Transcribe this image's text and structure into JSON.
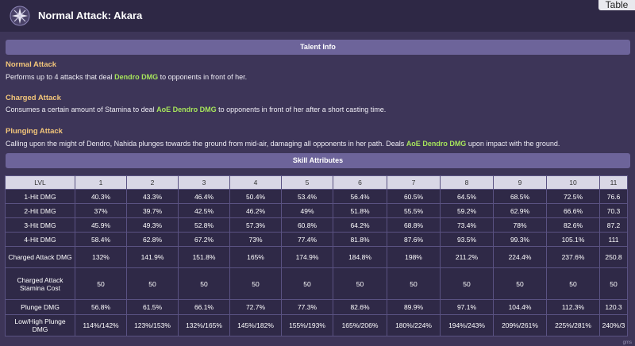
{
  "header": {
    "title": "Normal Attack: Akara",
    "table_button": "Table"
  },
  "talent_info": {
    "heading": "Talent Info",
    "normal": {
      "name": "Normal Attack",
      "before": "Performs up to 4 attacks that deal ",
      "highlight": "Dendro DMG",
      "after": " to opponents in front of her."
    },
    "charged": {
      "name": "Charged Attack",
      "before": "Consumes a certain amount of Stamina to deal ",
      "highlight": "AoE Dendro DMG",
      "after": " to opponents in front of her after a short casting time."
    },
    "plunging": {
      "name": "Plunging Attack",
      "before": "Calling upon the might of Dendro, Nahida plunges towards the ground from mid-air, damaging all opponents in her path. Deals ",
      "highlight": "AoE Dendro DMG",
      "after": " upon impact with the ground."
    }
  },
  "skill_attributes": {
    "heading": "Skill Attributes",
    "columns": [
      "LVL",
      "1",
      "2",
      "3",
      "4",
      "5",
      "6",
      "7",
      "8",
      "9",
      "10",
      "11"
    ],
    "rows": [
      {
        "label": "1-Hit DMG",
        "values": [
          "40.3%",
          "43.3%",
          "46.4%",
          "50.4%",
          "53.4%",
          "56.4%",
          "60.5%",
          "64.5%",
          "68.5%",
          "72.5%",
          "76.6"
        ]
      },
      {
        "label": "2-Hit DMG",
        "values": [
          "37%",
          "39.7%",
          "42.5%",
          "46.2%",
          "49%",
          "51.8%",
          "55.5%",
          "59.2%",
          "62.9%",
          "66.6%",
          "70.3"
        ]
      },
      {
        "label": "3-Hit DMG",
        "values": [
          "45.9%",
          "49.3%",
          "52.8%",
          "57.3%",
          "60.8%",
          "64.2%",
          "68.8%",
          "73.4%",
          "78%",
          "82.6%",
          "87.2"
        ]
      },
      {
        "label": "4-Hit DMG",
        "values": [
          "58.4%",
          "62.8%",
          "67.2%",
          "73%",
          "77.4%",
          "81.8%",
          "87.6%",
          "93.5%",
          "99.3%",
          "105.1%",
          "111"
        ]
      },
      {
        "label": "Charged Attack DMG",
        "values": [
          "132%",
          "141.9%",
          "151.8%",
          "165%",
          "174.9%",
          "184.8%",
          "198%",
          "211.2%",
          "224.4%",
          "237.6%",
          "250.8"
        ]
      },
      {
        "label": "Charged Attack Stamina Cost",
        "values": [
          "50",
          "50",
          "50",
          "50",
          "50",
          "50",
          "50",
          "50",
          "50",
          "50",
          "50"
        ]
      },
      {
        "label": "Plunge DMG",
        "values": [
          "56.8%",
          "61.5%",
          "66.1%",
          "72.7%",
          "77.3%",
          "82.6%",
          "89.9%",
          "97.1%",
          "104.4%",
          "112.3%",
          "120.3"
        ]
      },
      {
        "label": "Low/High Plunge DMG",
        "values": [
          "114%/142%",
          "123%/153%",
          "132%/165%",
          "145%/182%",
          "155%/193%",
          "165%/206%",
          "180%/224%",
          "194%/243%",
          "209%/261%",
          "225%/281%",
          "240%/3"
        ]
      }
    ]
  },
  "watermark": "gms",
  "colors": {
    "background": "#3d3558",
    "section_bar": "#6d649a",
    "talent_name": "#f2c57a",
    "dendro_highlight": "#a5e35b"
  }
}
